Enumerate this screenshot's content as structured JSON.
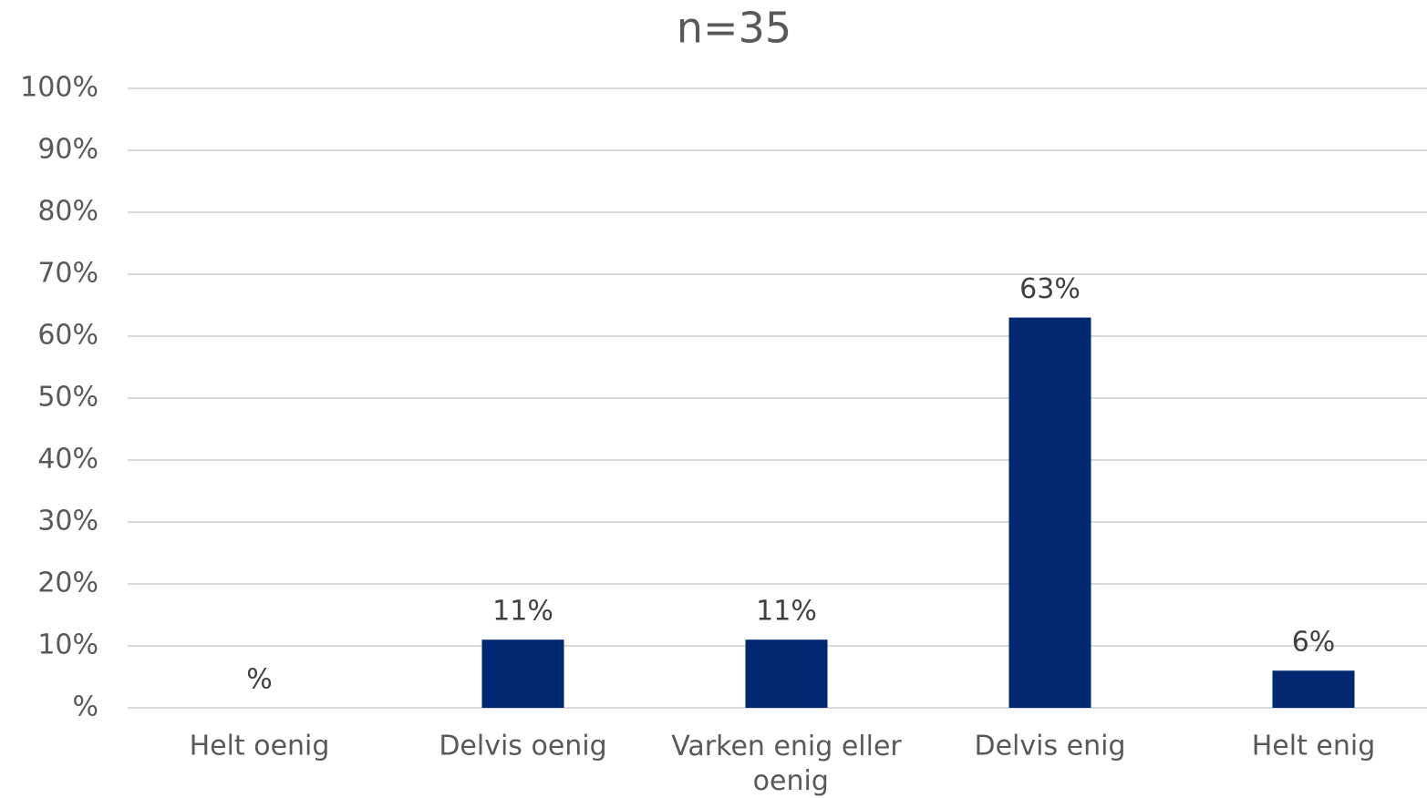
{
  "chart_data": {
    "type": "bar",
    "title": "n=35",
    "categories": [
      "Helt oenig",
      "Delvis oenig",
      "Varken enig eller oenig",
      "Delvis enig",
      "Helt enig"
    ],
    "values": [
      0,
      11,
      11,
      63,
      6
    ],
    "value_labels": [
      "%",
      "11%",
      "11%",
      "63%",
      "6%"
    ],
    "color": "#002870",
    "ylim": [
      0,
      100
    ],
    "yticks": [
      {
        "value": 0,
        "label": "%"
      },
      {
        "value": 10,
        "label": "10%"
      },
      {
        "value": 20,
        "label": "20%"
      },
      {
        "value": 30,
        "label": "30%"
      },
      {
        "value": 40,
        "label": "40%"
      },
      {
        "value": 50,
        "label": "50%"
      },
      {
        "value": 60,
        "label": "60%"
      },
      {
        "value": 70,
        "label": "70%"
      },
      {
        "value": 80,
        "label": "80%"
      },
      {
        "value": 90,
        "label": "90%"
      },
      {
        "value": 100,
        "label": "100%"
      }
    ],
    "grid": true
  }
}
